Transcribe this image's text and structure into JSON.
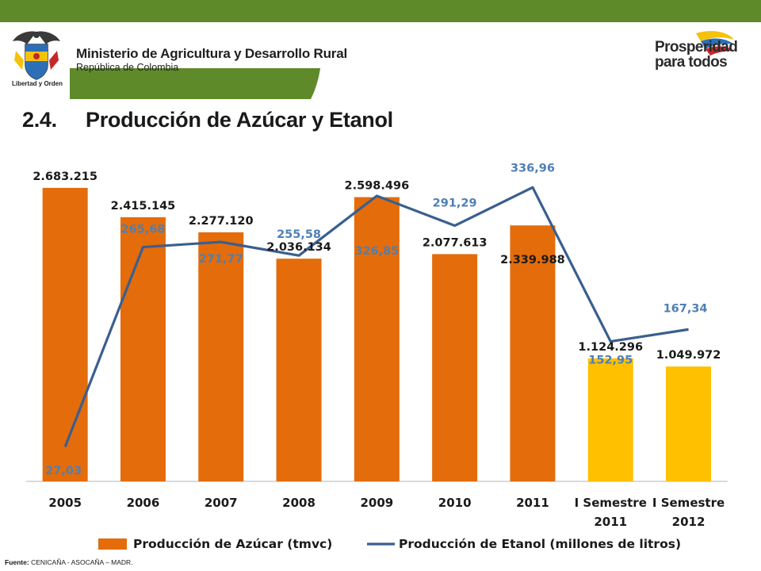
{
  "header": {
    "ministry_name": "Ministerio de Agricultura y Desarrollo Rural",
    "ministry_sub": "República de Colombia",
    "motto": "Libertad y Orden",
    "brand_line1": "Prosperidad",
    "brand_line2": "para todos",
    "colors": {
      "banner": "#5f8a2a",
      "white": "#ffffff"
    }
  },
  "slide": {
    "number": "2.4.",
    "title": "Producción de Azúcar y Etanol"
  },
  "chart_data": {
    "type": "bar",
    "categories": [
      [
        "2005"
      ],
      [
        "2006"
      ],
      [
        "2007"
      ],
      [
        "2008"
      ],
      [
        "2009"
      ],
      [
        "2010"
      ],
      [
        "2011"
      ],
      [
        "I Semestre",
        "2011"
      ],
      [
        "I Semestre",
        "2012"
      ]
    ],
    "series": [
      {
        "name": "Producción de Azúcar (tmvc)",
        "kind": "bar",
        "values": [
          2683215,
          2415145,
          2277120,
          2036134,
          2598496,
          2077613,
          2339988,
          1124296,
          1049972
        ],
        "labels": [
          "2.683.215",
          "2.415.145",
          "2.277.120",
          "2.036.134",
          "2.598.496",
          "2.077.613",
          "2.339.988",
          "1.124.296",
          "1.049.972"
        ],
        "colors": [
          "#e46c0a",
          "#e46c0a",
          "#e46c0a",
          "#e46c0a",
          "#e46c0a",
          "#e46c0a",
          "#e46c0a",
          "#ffc000",
          "#ffc000"
        ]
      },
      {
        "name": "Producción de Etanol (millones de litros)",
        "kind": "line",
        "values": [
          27.03,
          265.68,
          271.77,
          255.58,
          326.85,
          291.29,
          336.96,
          152.95,
          167.34
        ],
        "labels": [
          "27,03",
          "265,68",
          "271,77",
          "255,58",
          "326,85",
          "291,29",
          "336,96",
          "152,95",
          "167,34"
        ],
        "color": "#3a5f8f",
        "label_color": "#4f7fb5"
      }
    ],
    "bar_ylim": [
      0,
      2900000
    ],
    "line_ylim": [
      0,
      360
    ],
    "grid": false,
    "legend_position": "bottom"
  },
  "source": {
    "label": "Fuente:",
    "text": "CENICAÑA - ASOCAÑA – MADR."
  }
}
